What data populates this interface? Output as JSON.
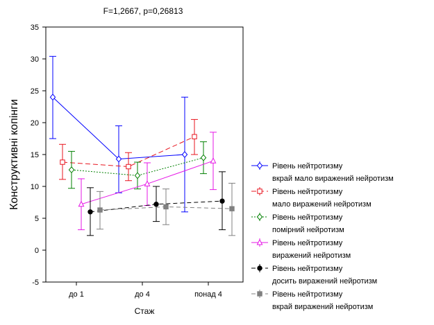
{
  "chart_data": {
    "type": "line",
    "title": "F=1,2667, p=0,26813",
    "xlabel": "Стаж",
    "ylabel": "Конструктивні копінги",
    "categories": [
      "до 1",
      "до 4",
      "понад 4"
    ],
    "ylim": [
      -5,
      35
    ],
    "yticks": [
      -5,
      0,
      5,
      10,
      15,
      20,
      25,
      30,
      35
    ],
    "grid": false,
    "legend_position": "right",
    "series": [
      {
        "name_line1": "Рівень нейтротизму",
        "name_line2": "вкрай мало виражений нейротизм",
        "color": "#0000ff",
        "dash": "",
        "marker": "diamond-open",
        "values": [
          24.0,
          14.3,
          15.0
        ],
        "lower": [
          17.5,
          9.0,
          6.0
        ],
        "upper": [
          30.4,
          19.5,
          24.0
        ]
      },
      {
        "name_line1": "Рівень нейтротизму",
        "name_line2": "мало виражений нейротизм",
        "color": "#e8141e",
        "dash": "7,4",
        "marker": "square-open",
        "values": [
          13.8,
          13.1,
          17.8
        ],
        "lower": [
          11.1,
          10.9,
          15.0
        ],
        "upper": [
          16.6,
          15.3,
          20.5
        ]
      },
      {
        "name_line1": "Рівень нейтротизму",
        "name_line2": "помірний нейротизм",
        "color": "#008000",
        "dash": "2,2",
        "marker": "diamond-open",
        "values": [
          12.6,
          11.7,
          14.5
        ],
        "lower": [
          9.7,
          9.6,
          12.0
        ],
        "upper": [
          15.5,
          13.8,
          17.0
        ]
      },
      {
        "name_line1": "Рівень нейтротизму",
        "name_line2": "виражений нейротизм",
        "color": "#e617e6",
        "dash": "",
        "marker": "triangle-open",
        "values": [
          7.2,
          10.4,
          14.0
        ],
        "lower": [
          3.2,
          7.0,
          9.5
        ],
        "upper": [
          11.2,
          13.7,
          18.5
        ]
      },
      {
        "name_line1": "Рівень нейтротизму",
        "name_line2": "досить виражений нейротизм",
        "color": "#000000",
        "dash": "6,4",
        "marker": "circle-filled",
        "values": [
          6.0,
          7.2,
          7.7
        ],
        "lower": [
          2.3,
          4.5,
          3.2
        ],
        "upper": [
          9.8,
          10.0,
          12.3
        ]
      },
      {
        "name_line1": "Рівень нейтротизму",
        "name_line2": "вкрай виражений нейротизм",
        "color": "#808080",
        "dash": "6,4",
        "marker": "square-filled",
        "values": [
          6.3,
          6.8,
          6.5
        ],
        "lower": [
          3.3,
          4.0,
          2.3
        ],
        "upper": [
          9.2,
          9.6,
          10.5
        ]
      }
    ]
  }
}
